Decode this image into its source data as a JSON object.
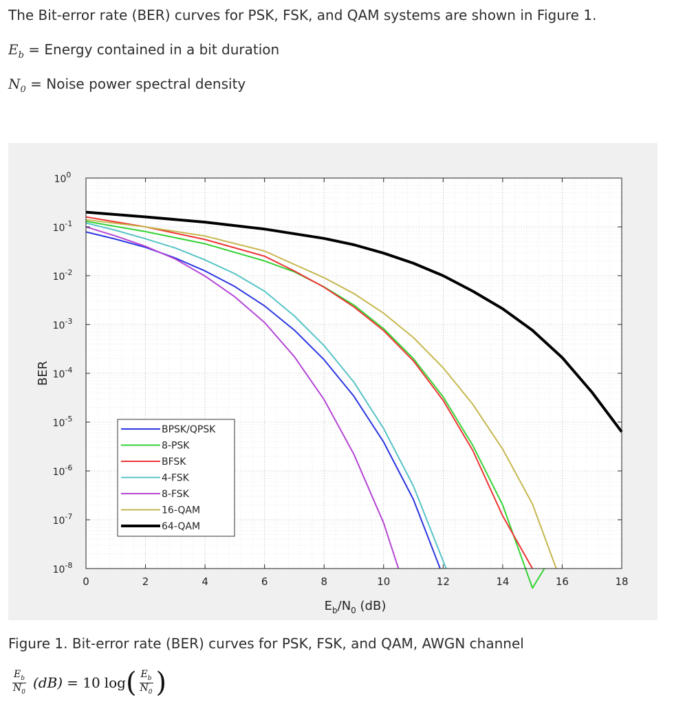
{
  "intro": "The Bit-error rate (BER) curves for PSK, FSK, and QAM systems are shown in Figure 1.",
  "definitions": {
    "eb_symbol": "E",
    "eb_sub": "b",
    "eb_text": "= Energy contained in a bit duration",
    "n0_symbol": "N",
    "n0_sub": "0",
    "n0_text": "= Noise power spectral density"
  },
  "caption": "Figure 1. Bit-error rate (BER) curves for PSK, FSK, and QAM, AWGN channel",
  "formula": {
    "lhs_num": "E",
    "lhs_num_sub": "b",
    "lhs_den": "N",
    "lhs_den_sub": "0",
    "unit": "(dB)",
    "equals": "= 10",
    "log": "log",
    "rhs_num": "E",
    "rhs_num_sub": "b",
    "rhs_den": "N",
    "rhs_den_sub": "0"
  },
  "chart_data": {
    "type": "line",
    "title": "",
    "xlabel": "E",
    "xlabel_sub1": "b",
    "xlabel_mid": "/N",
    "xlabel_sub2": "0",
    "xlabel_end": " (dB)",
    "ylabel": "BER",
    "xlim": [
      0,
      18
    ],
    "ylim": [
      1e-08,
      1
    ],
    "yscale": "log",
    "grid": true,
    "xticks": [
      0,
      2,
      4,
      6,
      8,
      10,
      12,
      14,
      16,
      18
    ],
    "xtick_labels": [
      "0",
      "2",
      "4",
      "6",
      "8",
      "10",
      "12",
      "14",
      "16",
      "18"
    ],
    "yticks": [
      1e-08,
      1e-07,
      1e-06,
      1e-05,
      0.0001,
      0.001,
      0.01,
      0.1,
      1
    ],
    "ytick_labels": [
      {
        "base": "10",
        "exp": "-8"
      },
      {
        "base": "10",
        "exp": "-7"
      },
      {
        "base": "10",
        "exp": "-6"
      },
      {
        "base": "10",
        "exp": "-5"
      },
      {
        "base": "10",
        "exp": "-4"
      },
      {
        "base": "10",
        "exp": "-3"
      },
      {
        "base": "10",
        "exp": "-2"
      },
      {
        "base": "10",
        "exp": "-1"
      },
      {
        "base": "10",
        "exp": "0"
      }
    ],
    "legend_position": "lower-left",
    "series": [
      {
        "name": "BPSK/QPSK",
        "color": "#2a35e0",
        "width": 2,
        "x": [
          0,
          1,
          2,
          3,
          4,
          5,
          6,
          7,
          8,
          9,
          10,
          11,
          11.9
        ],
        "y": [
          0.079,
          0.056,
          0.038,
          0.023,
          0.0125,
          0.006,
          0.0024,
          0.00077,
          0.00019,
          3.4e-05,
          3.9e-06,
          2.6e-07,
          1e-08
        ]
      },
      {
        "name": "8-PSK",
        "color": "#33d233",
        "width": 2,
        "x": [
          0,
          2,
          4,
          6,
          7,
          8,
          9,
          10,
          11,
          12,
          13,
          14,
          15,
          15.4
        ],
        "y": [
          0.13,
          0.08,
          0.045,
          0.02,
          0.012,
          0.0059,
          0.0025,
          0.00082,
          0.0002,
          3.3e-05,
          3.3e-06,
          2e-07,
          4e-09,
          1e-08
        ]
      },
      {
        "name": "BFSK",
        "color": "#ee3333",
        "width": 2,
        "x": [
          0,
          2,
          4,
          6,
          7,
          8,
          9,
          10,
          11,
          12,
          13,
          14,
          15
        ],
        "y": [
          0.16,
          0.1,
          0.055,
          0.025,
          0.0125,
          0.0058,
          0.0023,
          0.00075,
          0.00018,
          2.8e-05,
          2.6e-06,
          1.2e-07,
          1e-08
        ]
      },
      {
        "name": "4-FSK",
        "color": "#55c3c6",
        "width": 2,
        "x": [
          0,
          1,
          2,
          3,
          4,
          5,
          6,
          7,
          8,
          9,
          10,
          11,
          12.1
        ],
        "y": [
          0.12,
          0.085,
          0.057,
          0.037,
          0.021,
          0.011,
          0.0048,
          0.0015,
          0.00037,
          6.6e-05,
          7.4e-06,
          4.9e-07,
          1e-08
        ]
      },
      {
        "name": "8-FSK",
        "color": "#b444d4",
        "width": 2,
        "x": [
          0,
          1,
          2,
          3,
          4,
          5,
          6,
          7,
          8,
          9,
          10,
          10.5
        ],
        "y": [
          0.1,
          0.065,
          0.04,
          0.022,
          0.0098,
          0.0037,
          0.0011,
          0.00022,
          2.9e-05,
          2.2e-06,
          8.6e-08,
          1e-08
        ]
      },
      {
        "name": "16-QAM",
        "color": "#c6b74e",
        "width": 2,
        "x": [
          0,
          2,
          4,
          6,
          7,
          8,
          9,
          10,
          11,
          12,
          13,
          14,
          15,
          15.8
        ],
        "y": [
          0.14,
          0.1,
          0.065,
          0.032,
          0.017,
          0.0091,
          0.0043,
          0.0017,
          0.00054,
          0.00013,
          2.3e-05,
          2.8e-06,
          2.1e-07,
          1e-08
        ]
      },
      {
        "name": "64-QAM",
        "color": "#000000",
        "width": 4,
        "x": [
          0,
          2,
          4,
          6,
          8,
          9,
          10,
          11,
          12,
          13,
          14,
          15,
          16,
          17,
          18
        ],
        "y": [
          0.2,
          0.16,
          0.125,
          0.09,
          0.058,
          0.043,
          0.029,
          0.018,
          0.01,
          0.0048,
          0.0021,
          0.00076,
          0.00021,
          4.1e-05,
          6.3e-06
        ]
      }
    ]
  }
}
